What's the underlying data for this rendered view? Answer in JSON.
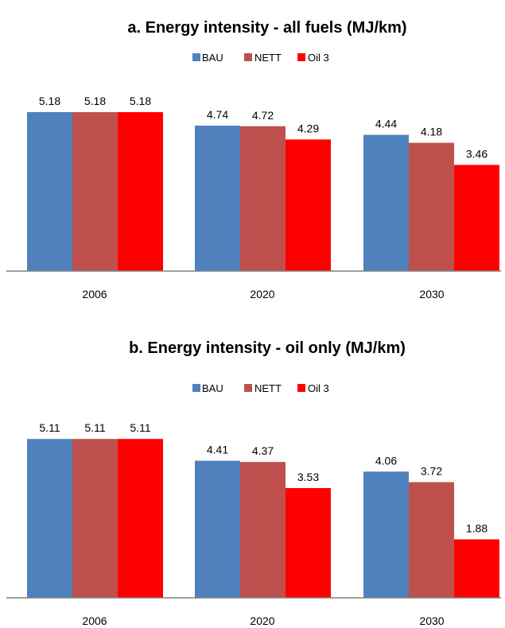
{
  "chart_data": [
    {
      "type": "bar",
      "title": "a. Energy intensity - all fuels (MJ/km)",
      "categories": [
        "2006",
        "2020",
        "2030"
      ],
      "series": [
        {
          "name": "BAU",
          "values": [
            5.18,
            4.74,
            4.44
          ],
          "color": "#4f81bd",
          "labels": [
            "5.18",
            "4.74",
            "4.44"
          ]
        },
        {
          "name": "NETT",
          "values": [
            5.18,
            4.72,
            4.18
          ],
          "color": "#c0504d",
          "labels": [
            "5.18",
            "4.72",
            "4.18"
          ]
        },
        {
          "name": "Oil 3",
          "values": [
            5.18,
            4.29,
            3.46
          ],
          "color": "#ff0000",
          "labels": [
            "5.18",
            "4.29",
            "3.46"
          ]
        }
      ],
      "ylim": [
        0,
        6
      ],
      "legend_position": "top",
      "grid": false
    },
    {
      "type": "bar",
      "title": "b. Energy intensity - oil only (MJ/km)",
      "categories": [
        "2006",
        "2020",
        "2030"
      ],
      "series": [
        {
          "name": "BAU",
          "values": [
            5.11,
            4.41,
            4.06
          ],
          "color": "#4f81bd",
          "labels": [
            "5.11",
            "4.41",
            "4.06"
          ]
        },
        {
          "name": "NETT",
          "values": [
            5.11,
            4.37,
            3.72
          ],
          "color": "#c0504d",
          "labels": [
            "5.11",
            "4.37",
            "3.72"
          ]
        },
        {
          "name": "Oil 3",
          "values": [
            5.11,
            3.53,
            1.88
          ],
          "color": "#ff0000",
          "labels": [
            "5.11",
            "3.53",
            "1.88"
          ]
        }
      ],
      "ylim": [
        0,
        6
      ],
      "legend_position": "top",
      "grid": false
    }
  ]
}
